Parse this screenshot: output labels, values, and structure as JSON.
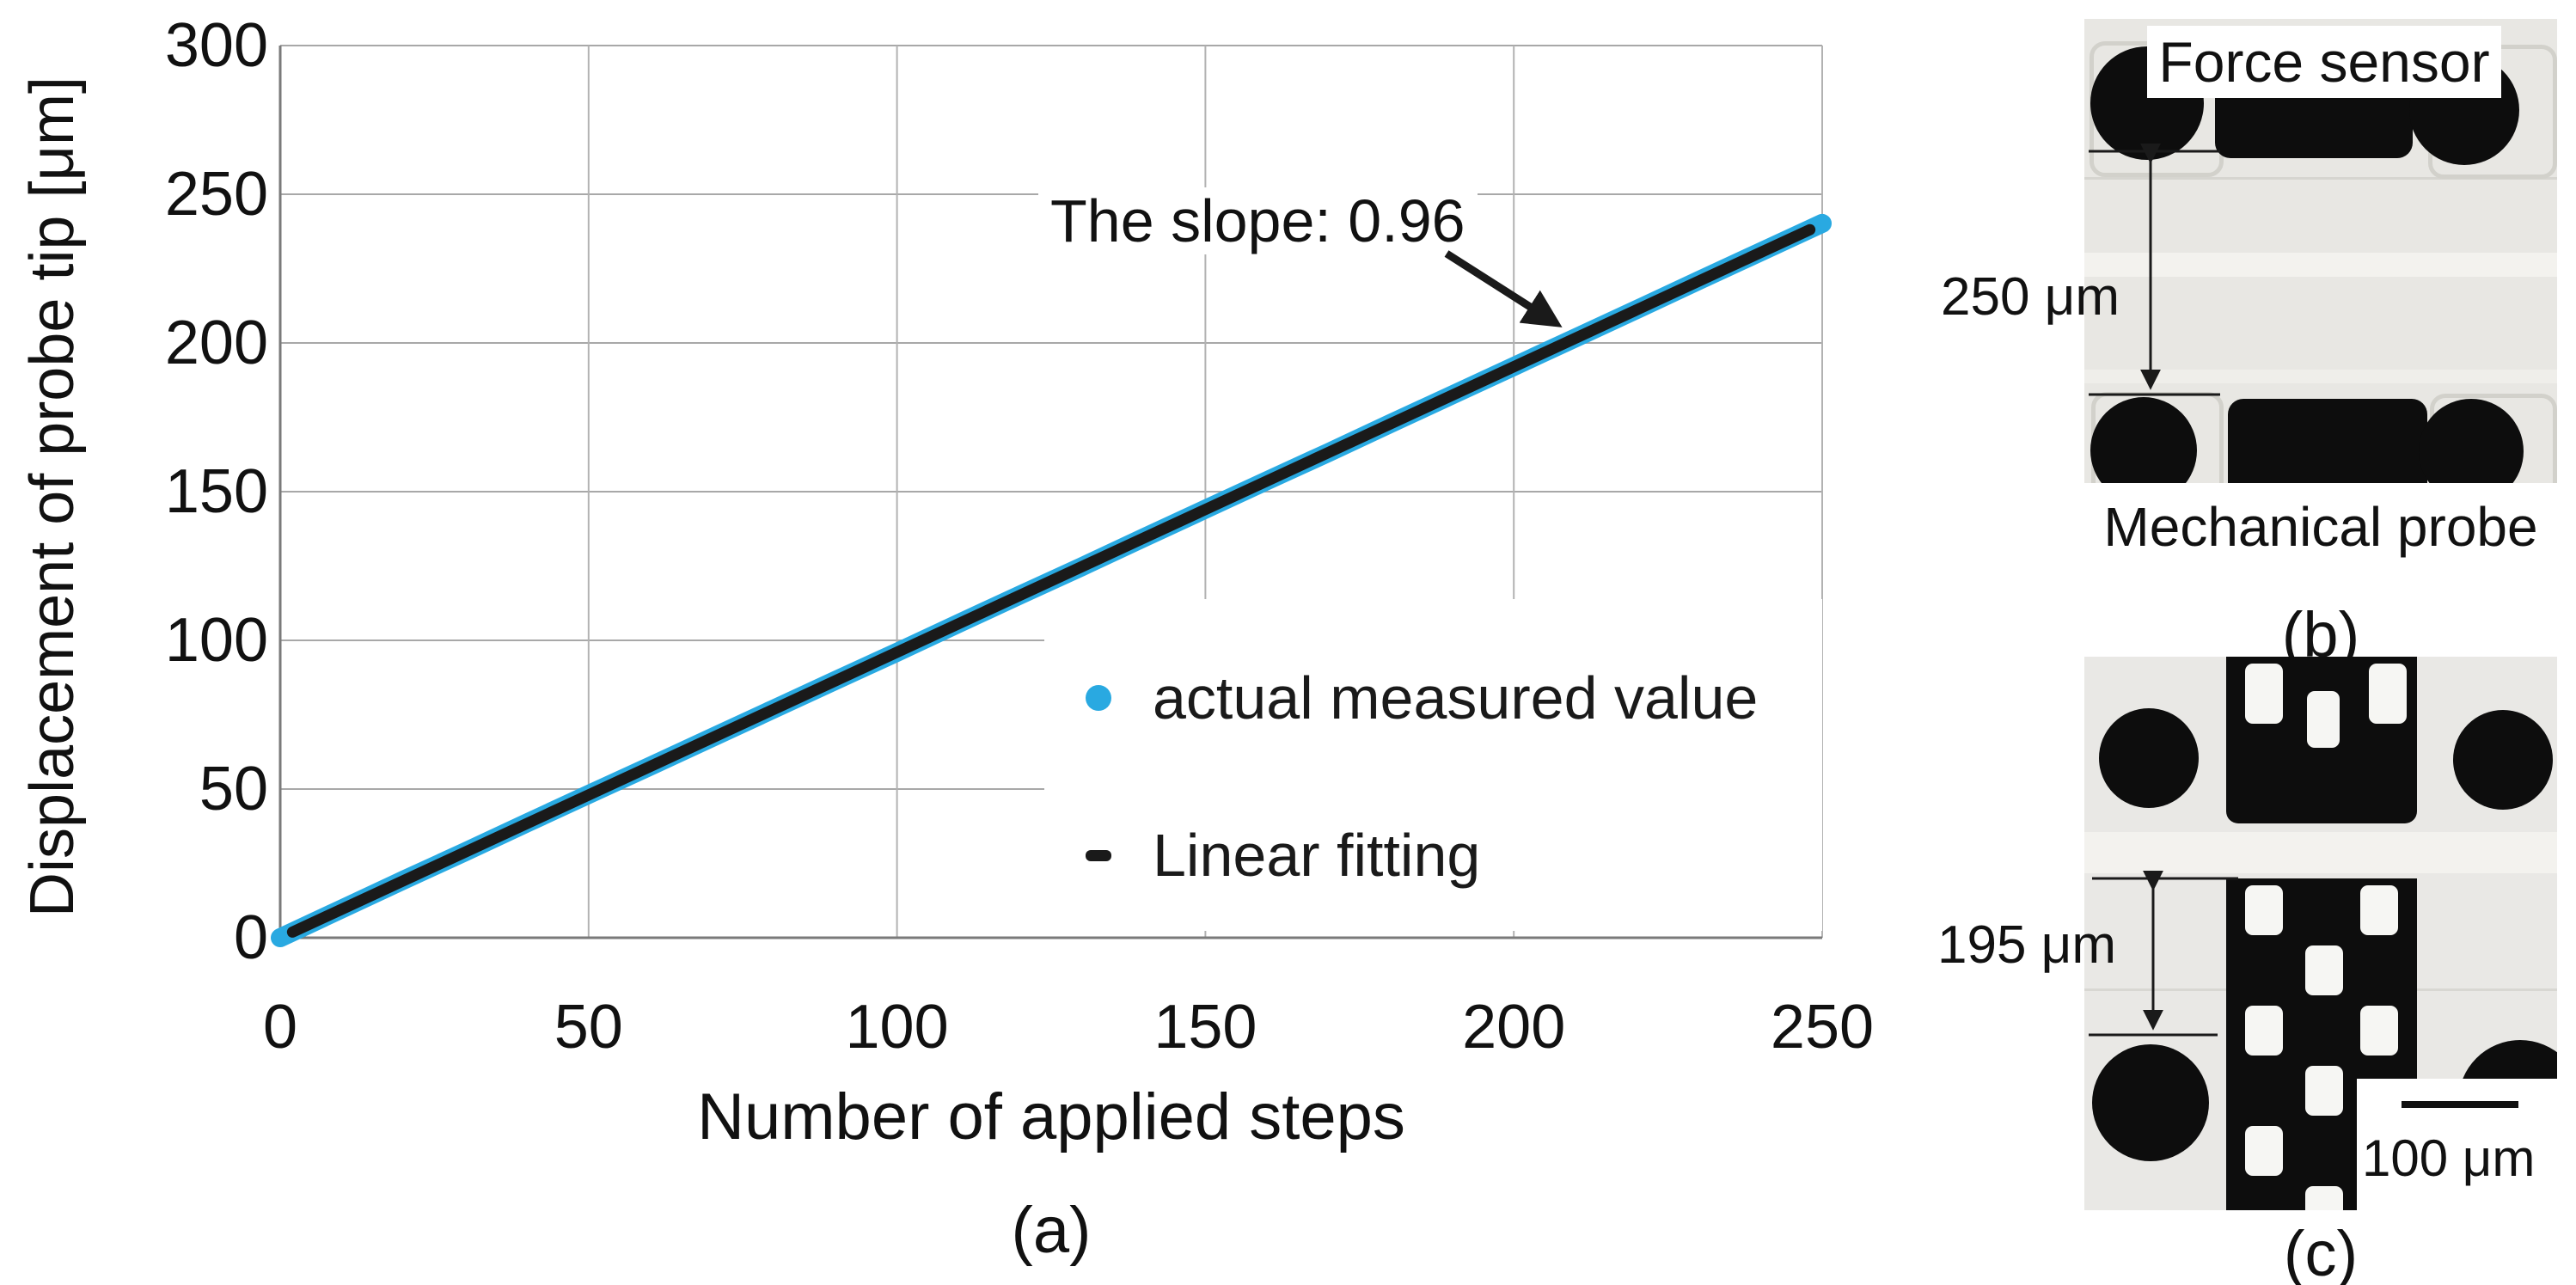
{
  "panel_a": {
    "caption": "(a)",
    "x_title": "Number of applied steps",
    "y_title": "Displacement of probe tip [μm]",
    "annotation": "The slope: 0.96",
    "legend": [
      {
        "label": "actual measured value",
        "marker": "dot",
        "color": "#29A9E1"
      },
      {
        "label": "Linear fitting",
        "marker": "dash",
        "color": "#1A1A1A"
      }
    ]
  },
  "chart_data": {
    "type": "scatter",
    "title": "",
    "xlabel": "Number of applied steps",
    "ylabel": "Displacement of probe tip [μm]",
    "xlim": [
      0,
      250
    ],
    "ylim": [
      0,
      300
    ],
    "x_ticks": [
      0,
      50,
      100,
      150,
      200,
      250
    ],
    "y_ticks": [
      0,
      50,
      100,
      150,
      200,
      250,
      300
    ],
    "grid": true,
    "legend_position": "inside-lower-right",
    "annotation": {
      "text": "The slope: 0.96",
      "points_to": {
        "x": 208,
        "y": 200
      }
    },
    "series": [
      {
        "name": "actual measured value",
        "type": "scatter",
        "color": "#29A9E1",
        "x": [
          0,
          10,
          20,
          30,
          40,
          50,
          60,
          70,
          80,
          90,
          100,
          110,
          120,
          130,
          140,
          150,
          160,
          170,
          180,
          190,
          200,
          210,
          220,
          230,
          240,
          250
        ],
        "y": [
          0,
          9.7,
          19.4,
          28.9,
          38.6,
          48.2,
          57.7,
          67.3,
          76.9,
          86.5,
          96.0,
          105.7,
          115.3,
          124.8,
          134.5,
          144.1,
          153.7,
          163.2,
          172.9,
          182.5,
          192.1,
          201.7,
          211.3,
          221.0,
          230.6,
          240.2
        ]
      },
      {
        "name": "Linear fitting",
        "type": "line",
        "color": "#1A1A1A",
        "slope": 0.96,
        "intercept": 0,
        "x_range": [
          0,
          250
        ]
      }
    ]
  },
  "panel_b": {
    "caption": "(b)",
    "label_top": "Force sensor",
    "label_bottom": "Mechanical probe",
    "dimension": "250 μm"
  },
  "panel_c": {
    "caption": "(c)",
    "dimension": "195 μm",
    "scale_bar": "100 μm"
  }
}
